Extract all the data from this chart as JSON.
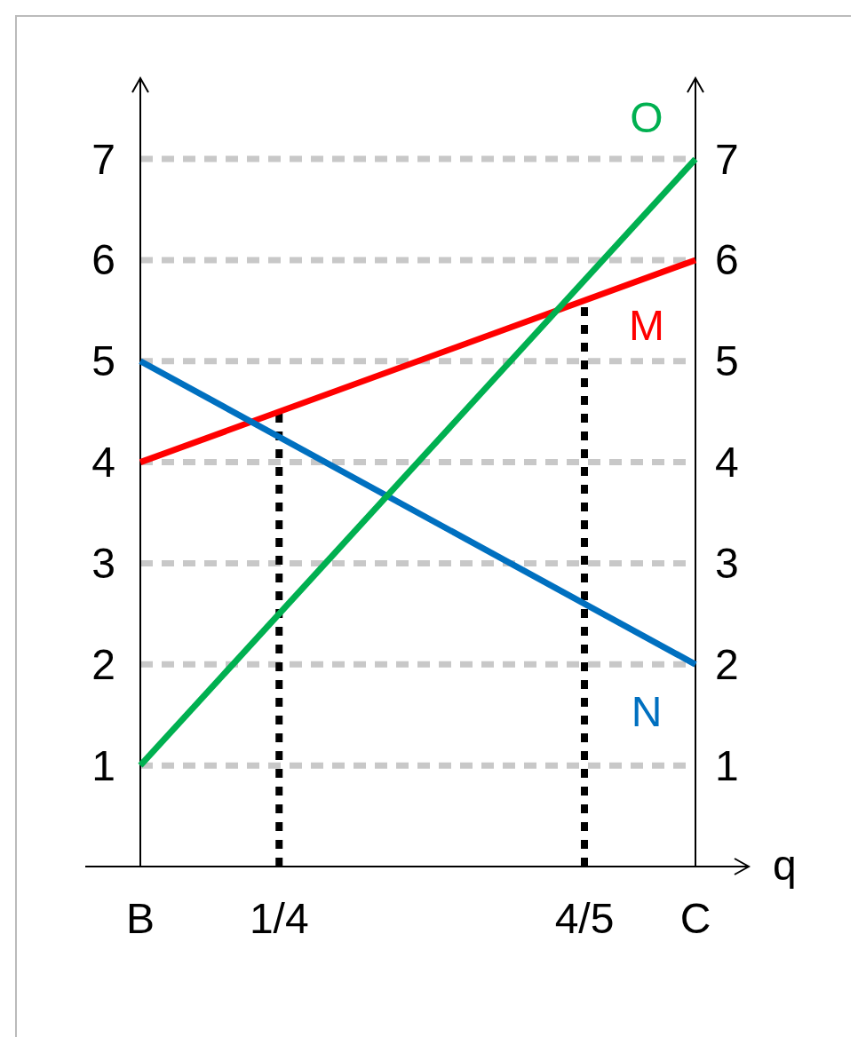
{
  "chart_data": {
    "type": "line",
    "xlabel": "q",
    "x": [
      0,
      1
    ],
    "series": [
      {
        "name": "M",
        "color": "#ff0000",
        "values": [
          4,
          6
        ]
      },
      {
        "name": "N",
        "color": "#0070c0",
        "values": [
          5,
          2
        ]
      },
      {
        "name": "O",
        "color": "#00b050",
        "values": [
          1,
          7
        ]
      }
    ],
    "xlim": [
      0,
      1
    ],
    "xticks": [
      {
        "value": 0,
        "label": "B"
      },
      {
        "value": 0.25,
        "label": "1/4"
      },
      {
        "value": 0.8,
        "label": "4/5"
      },
      {
        "value": 1,
        "label": "C"
      }
    ],
    "ylim": [
      0,
      7.8
    ],
    "yticks": [
      1,
      2,
      3,
      4,
      5,
      6,
      7
    ],
    "y2lim": [
      0,
      7.8
    ],
    "y2ticks": [
      1,
      2,
      3,
      4,
      5,
      6,
      7
    ],
    "grid": "y",
    "marker": "none",
    "line_style": "solid",
    "ref_lines": [
      {
        "axis": "x",
        "value": 0.25,
        "color": "#000000",
        "line_style": "dotted"
      },
      {
        "axis": "x",
        "value": 0.8,
        "color": "#000000",
        "line_style": "dotted"
      }
    ]
  }
}
